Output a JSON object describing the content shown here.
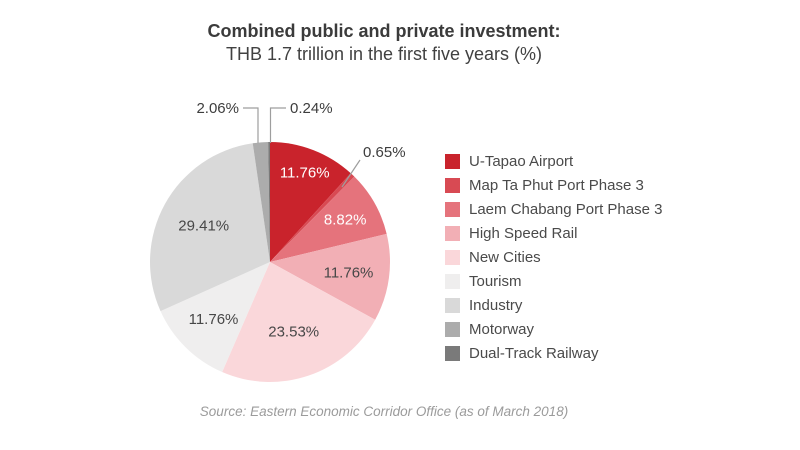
{
  "header": {
    "title": "Combined public and private investment:",
    "subtitle": "THB 1.7 trillion in the first five years (%)"
  },
  "source": {
    "text": "Source: Eastern Economic Corridor Office (as of March 2018)"
  },
  "chart_data": {
    "type": "pie",
    "title": "Combined public and private investment:",
    "subtitle": "THB 1.7 trillion in the first five years (%)",
    "unit": "%",
    "total": 100,
    "start_angle_deg": -90,
    "direction": "clockwise",
    "legend_position": "right",
    "leader_line_color": "#9e9e9e",
    "inside_label_font_px": 15,
    "outside_label_color": "#3d3d3d",
    "slices": [
      {
        "label": "U-Tapao Airport",
        "value": 11.76,
        "pct_label": "11.76%",
        "color": "#c9232c",
        "label_placement": "inside",
        "label_color": "#ffffff"
      },
      {
        "label": "Map Ta Phut Port Phase 3",
        "value": 0.65,
        "pct_label": "0.65%",
        "color": "#d84a53",
        "label_placement": "outside",
        "label_color": "#3d3d3d"
      },
      {
        "label": "Laem Chabang Port Phase 3",
        "value": 8.82,
        "pct_label": "8.82%",
        "color": "#e5737c",
        "label_placement": "inside",
        "label_color": "#ffffff"
      },
      {
        "label": "High Speed Rail",
        "value": 11.76,
        "pct_label": "11.76%",
        "color": "#f2afb5",
        "label_placement": "inside",
        "label_color": "#474747"
      },
      {
        "label": "New Cities",
        "value": 23.53,
        "pct_label": "23.53%",
        "color": "#fad7da",
        "label_placement": "inside",
        "label_color": "#474747"
      },
      {
        "label": "Tourism",
        "value": 11.76,
        "pct_label": "11.76%",
        "color": "#efeeee",
        "label_placement": "inside",
        "label_color": "#474747"
      },
      {
        "label": "Industry",
        "value": 29.41,
        "pct_label": "29.41%",
        "color": "#d9d9d9",
        "label_placement": "inside",
        "label_color": "#474747"
      },
      {
        "label": "Motorway",
        "value": 2.06,
        "pct_label": "2.06%",
        "color": "#acacac",
        "label_placement": "outside",
        "label_color": "#3d3d3d"
      },
      {
        "label": "Dual-Track Railway",
        "value": 0.24,
        "pct_label": "0.24%",
        "color": "#7a7a7a",
        "label_placement": "outside",
        "label_color": "#3d3d3d"
      }
    ]
  }
}
